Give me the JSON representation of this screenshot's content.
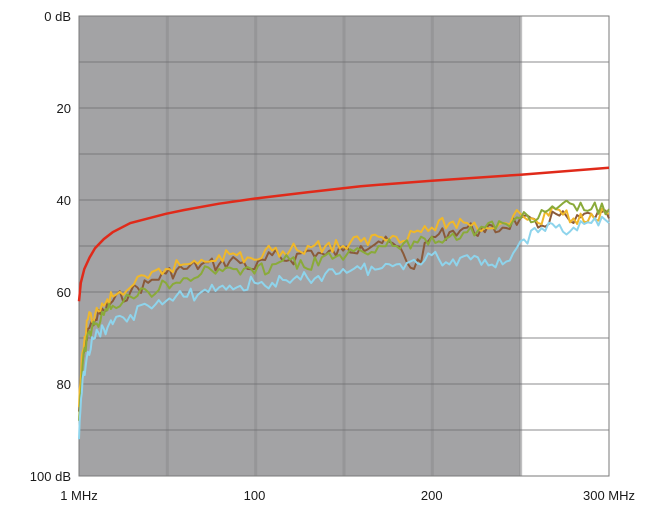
{
  "chart_data": {
    "type": "line",
    "title": "",
    "xlabel": "",
    "ylabel": "",
    "xlim": [
      1,
      300
    ],
    "ylim": [
      0,
      100
    ],
    "y_inverted": true,
    "grid": true,
    "x_ticks": [
      {
        "value": 1,
        "label": "1 MHz"
      },
      {
        "value": 100,
        "label": "100"
      },
      {
        "value": 200,
        "label": "200"
      },
      {
        "value": 300,
        "label": "300 MHz"
      }
    ],
    "y_ticks": [
      {
        "value": 0,
        "label": "0 dB"
      },
      {
        "value": 20,
        "label": "20"
      },
      {
        "value": 40,
        "label": "40"
      },
      {
        "value": 60,
        "label": "60"
      },
      {
        "value": 80,
        "label": "80"
      },
      {
        "value": 100,
        "label": "100 dB"
      }
    ],
    "shaded_region": {
      "x_end": 250,
      "color": "#a3a3a5"
    },
    "limit_line": {
      "color": "#e02a1a",
      "x": [
        1,
        2,
        4,
        7,
        10,
        15,
        20,
        30,
        40,
        50,
        60,
        80,
        100,
        130,
        160,
        200,
        250,
        300
      ],
      "y": [
        62,
        58,
        55,
        52.5,
        50.5,
        48.5,
        47,
        45,
        44,
        43,
        42.2,
        40.8,
        39.7,
        38.3,
        37,
        35.8,
        34.5,
        33
      ]
    },
    "series": [
      {
        "color": "#8a5a3a",
        "x": [
          1,
          3,
          6,
          10,
          15,
          20,
          30,
          40,
          50,
          60,
          70,
          80,
          90,
          100,
          110,
          120,
          130,
          140,
          150,
          160,
          170,
          180,
          190,
          200,
          210,
          220,
          230,
          240,
          250,
          260,
          270,
          280,
          290,
          300
        ],
        "y": [
          86,
          75,
          68,
          66,
          64,
          62,
          60,
          58,
          56,
          55,
          54,
          54,
          53,
          55,
          52,
          53,
          51,
          52,
          51,
          50,
          49,
          50,
          55,
          48,
          47,
          46,
          47,
          46,
          44,
          46,
          43,
          45,
          43,
          44
        ]
      },
      {
        "color": "#f0b82a",
        "x": [
          1,
          3,
          6,
          10,
          15,
          20,
          30,
          40,
          50,
          60,
          70,
          80,
          90,
          100,
          110,
          120,
          130,
          140,
          150,
          160,
          170,
          180,
          190,
          200,
          210,
          220,
          230,
          240,
          250,
          260,
          270,
          280,
          290,
          300
        ],
        "y": [
          85,
          73,
          66,
          65,
          63,
          61,
          59,
          57,
          55,
          54,
          53,
          52,
          52,
          53,
          51,
          51,
          50,
          50,
          50,
          49,
          48,
          48,
          47,
          46,
          45,
          45,
          46,
          45,
          43,
          45,
          42,
          44,
          43,
          43
        ]
      },
      {
        "color": "#8aaa3a",
        "x": [
          1,
          3,
          6,
          10,
          15,
          20,
          30,
          40,
          50,
          60,
          70,
          80,
          90,
          100,
          110,
          120,
          130,
          140,
          150,
          160,
          170,
          180,
          190,
          200,
          210,
          220,
          230,
          240,
          250,
          260,
          270,
          280,
          290,
          300
        ],
        "y": [
          88,
          76,
          69,
          67,
          65,
          63,
          61,
          60,
          58,
          57,
          56,
          55,
          55,
          56,
          54,
          53,
          55,
          52,
          53,
          51,
          50,
          50,
          49,
          48,
          48,
          47,
          46,
          45,
          44,
          44,
          42,
          41,
          42,
          42
        ]
      },
      {
        "color": "#8ed4ec",
        "x": [
          1,
          3,
          6,
          10,
          15,
          20,
          30,
          40,
          50,
          60,
          70,
          80,
          90,
          100,
          110,
          120,
          130,
          140,
          150,
          160,
          170,
          180,
          190,
          200,
          210,
          220,
          230,
          240,
          250,
          260,
          270,
          280,
          290,
          300
        ],
        "y": [
          92,
          79,
          73,
          70,
          68,
          67,
          65,
          63,
          62,
          61,
          60,
          59,
          59,
          58,
          58,
          58,
          57,
          56,
          55,
          55,
          55,
          54,
          53,
          52,
          54,
          52,
          53,
          54,
          49,
          47,
          46,
          46,
          45,
          45
        ]
      }
    ]
  }
}
